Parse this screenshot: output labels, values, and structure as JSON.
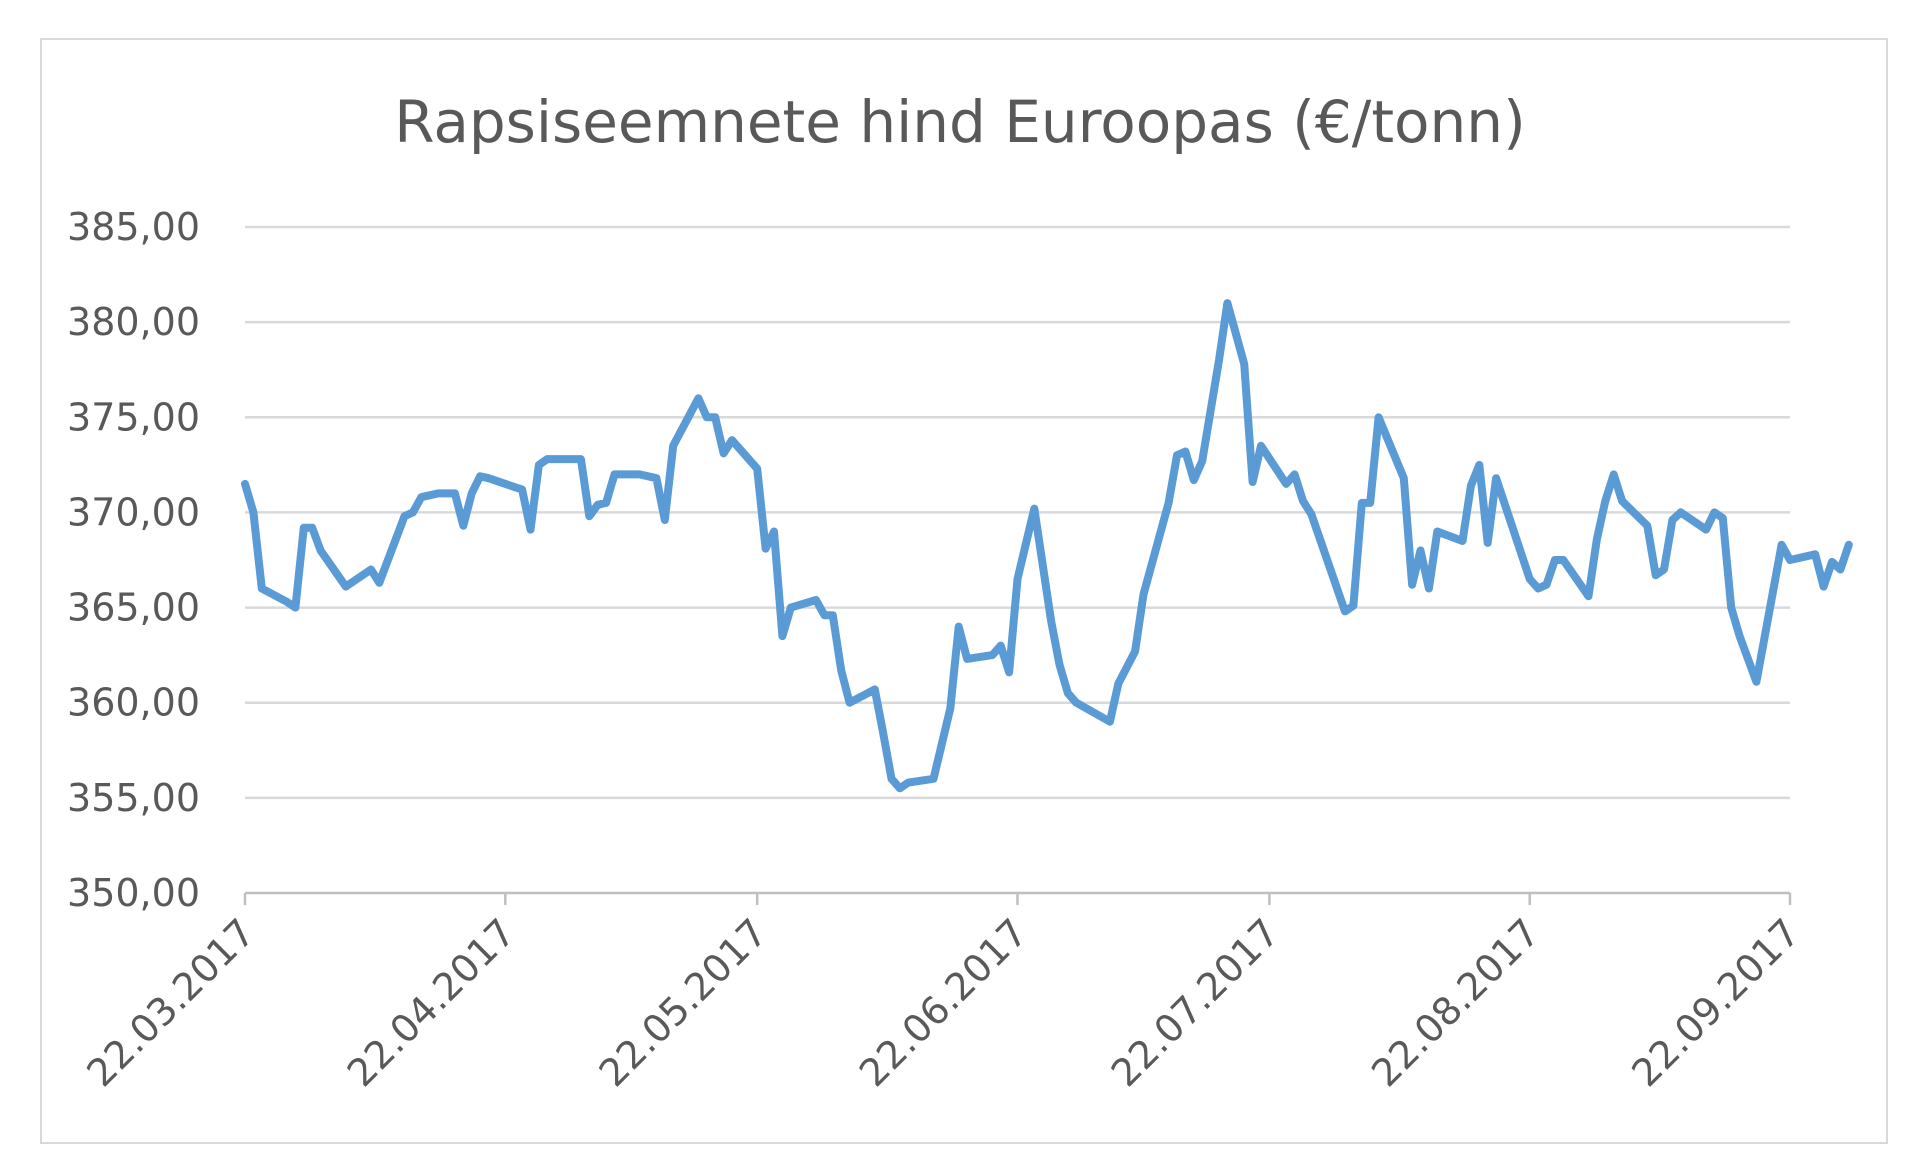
{
  "chart_data": {
    "type": "line",
    "title": "Rapsiseemnete hind Euroopas (€/tonn)",
    "xlabel": "",
    "ylabel": "",
    "ylim": [
      350,
      385
    ],
    "yticks": [
      350,
      355,
      360,
      365,
      370,
      375,
      380,
      385
    ],
    "ytick_labels": [
      "350,00",
      "355,00",
      "360,00",
      "365,00",
      "370,00",
      "375,00",
      "380,00",
      "385,00"
    ],
    "xlim": [
      "2017-03-22",
      "2017-09-22"
    ],
    "xticks": [
      "2017-03-22",
      "2017-04-22",
      "2017-05-22",
      "2017-06-22",
      "2017-07-22",
      "2017-08-22",
      "2017-09-22"
    ],
    "xtick_labels": [
      "22.03.2017",
      "22.04.2017",
      "22.05.2017",
      "22.06.2017",
      "22.07.2017",
      "22.08.2017",
      "22.09.2017"
    ],
    "grid": true,
    "line_color": "#5B9BD5",
    "gridline_color": "#d9d9d9",
    "series": [
      {
        "points": [
          [
            "2017-03-22",
            371.5
          ],
          [
            "2017-03-23",
            370.0
          ],
          [
            "2017-03-24",
            366.0
          ],
          [
            "2017-03-27",
            365.3
          ],
          [
            "2017-03-28",
            365.0
          ],
          [
            "2017-03-29",
            369.2
          ],
          [
            "2017-03-30",
            369.2
          ],
          [
            "2017-03-31",
            368.0
          ],
          [
            "2017-04-03",
            366.1
          ],
          [
            "2017-04-06",
            367.0
          ],
          [
            "2017-04-07",
            366.3
          ],
          [
            "2017-04-10",
            369.8
          ],
          [
            "2017-04-11",
            370.0
          ],
          [
            "2017-04-12",
            370.8
          ],
          [
            "2017-04-14",
            371.0
          ],
          [
            "2017-04-16",
            371.0
          ],
          [
            "2017-04-17",
            369.3
          ],
          [
            "2017-04-18",
            371.0
          ],
          [
            "2017-04-19",
            371.9
          ],
          [
            "2017-04-20",
            371.8
          ],
          [
            "2017-04-24",
            371.2
          ],
          [
            "2017-04-25",
            369.1
          ],
          [
            "2017-04-26",
            372.5
          ],
          [
            "2017-04-27",
            372.8
          ],
          [
            "2017-04-30",
            372.8
          ],
          [
            "2017-05-01",
            372.8
          ],
          [
            "2017-05-02",
            369.8
          ],
          [
            "2017-05-03",
            370.4
          ],
          [
            "2017-05-04",
            370.5
          ],
          [
            "2017-05-05",
            372.0
          ],
          [
            "2017-05-08",
            372.0
          ],
          [
            "2017-05-10",
            371.8
          ],
          [
            "2017-05-11",
            369.6
          ],
          [
            "2017-05-12",
            373.5
          ],
          [
            "2017-05-15",
            376.0
          ],
          [
            "2017-05-16",
            375.0
          ],
          [
            "2017-05-17",
            375.0
          ],
          [
            "2017-05-18",
            373.1
          ],
          [
            "2017-05-19",
            373.8
          ],
          [
            "2017-05-22",
            372.3
          ],
          [
            "2017-05-23",
            368.1
          ],
          [
            "2017-05-24",
            369.0
          ],
          [
            "2017-05-25",
            363.5
          ],
          [
            "2017-05-26",
            365.0
          ],
          [
            "2017-05-29",
            365.4
          ],
          [
            "2017-05-30",
            364.6
          ],
          [
            "2017-05-31",
            364.6
          ],
          [
            "2017-06-01",
            361.7
          ],
          [
            "2017-06-02",
            360.0
          ],
          [
            "2017-06-05",
            360.7
          ],
          [
            "2017-06-06",
            358.4
          ],
          [
            "2017-06-07",
            356.0
          ],
          [
            "2017-06-08",
            355.5
          ],
          [
            "2017-06-09",
            355.8
          ],
          [
            "2017-06-12",
            356.0
          ],
          [
            "2017-06-14",
            359.7
          ],
          [
            "2017-06-15",
            364.0
          ],
          [
            "2017-06-16",
            362.3
          ],
          [
            "2017-06-19",
            362.5
          ],
          [
            "2017-06-20",
            363.0
          ],
          [
            "2017-06-21",
            361.6
          ],
          [
            "2017-06-22",
            366.5
          ],
          [
            "2017-06-24",
            370.2
          ],
          [
            "2017-06-26",
            364.3
          ],
          [
            "2017-06-27",
            362.0
          ],
          [
            "2017-06-28",
            360.5
          ],
          [
            "2017-06-29",
            360.0
          ],
          [
            "2017-07-03",
            359.0
          ],
          [
            "2017-07-04",
            361.0
          ],
          [
            "2017-07-06",
            362.7
          ],
          [
            "2017-07-07",
            365.7
          ],
          [
            "2017-07-10",
            370.5
          ],
          [
            "2017-07-11",
            373.0
          ],
          [
            "2017-07-12",
            373.2
          ],
          [
            "2017-07-13",
            371.7
          ],
          [
            "2017-07-14",
            372.7
          ],
          [
            "2017-07-16",
            378.0
          ],
          [
            "2017-07-17",
            381.0
          ],
          [
            "2017-07-19",
            377.8
          ],
          [
            "2017-07-20",
            371.6
          ],
          [
            "2017-07-21",
            373.5
          ],
          [
            "2017-07-24",
            371.5
          ],
          [
            "2017-07-25",
            372.0
          ],
          [
            "2017-07-26",
            370.6
          ],
          [
            "2017-07-27",
            369.9
          ],
          [
            "2017-07-31",
            364.8
          ],
          [
            "2017-08-01",
            365.1
          ],
          [
            "2017-08-02",
            370.5
          ],
          [
            "2017-08-03",
            370.5
          ],
          [
            "2017-08-04",
            375.0
          ],
          [
            "2017-08-07",
            371.8
          ],
          [
            "2017-08-08",
            366.2
          ],
          [
            "2017-08-09",
            368.0
          ],
          [
            "2017-08-10",
            366.0
          ],
          [
            "2017-08-11",
            369.0
          ],
          [
            "2017-08-14",
            368.5
          ],
          [
            "2017-08-15",
            371.4
          ],
          [
            "2017-08-16",
            372.5
          ],
          [
            "2017-08-17",
            368.4
          ],
          [
            "2017-08-18",
            371.8
          ],
          [
            "2017-08-22",
            366.5
          ],
          [
            "2017-08-23",
            366.0
          ],
          [
            "2017-08-24",
            366.2
          ],
          [
            "2017-08-25",
            367.5
          ],
          [
            "2017-08-26",
            367.5
          ],
          [
            "2017-08-29",
            365.6
          ],
          [
            "2017-08-30",
            368.6
          ],
          [
            "2017-08-31",
            370.6
          ],
          [
            "2017-09-01",
            372.0
          ],
          [
            "2017-09-02",
            370.6
          ],
          [
            "2017-09-05",
            369.3
          ],
          [
            "2017-09-06",
            366.7
          ],
          [
            "2017-09-07",
            367.0
          ],
          [
            "2017-09-08",
            369.6
          ],
          [
            "2017-09-09",
            370.0
          ],
          [
            "2017-09-12",
            369.1
          ],
          [
            "2017-09-13",
            370.0
          ],
          [
            "2017-09-14",
            369.7
          ],
          [
            "2017-09-15",
            365.0
          ],
          [
            "2017-09-16",
            363.5
          ],
          [
            "2017-09-18",
            361.1
          ],
          [
            "2017-09-19",
            363.5
          ],
          [
            "2017-09-21",
            368.3
          ],
          [
            "2017-09-22",
            367.5
          ],
          [
            "2017-09-25",
            367.8
          ],
          [
            "2017-09-26",
            366.1
          ],
          [
            "2017-09-27",
            367.4
          ],
          [
            "2017-09-28",
            367.0
          ],
          [
            "2017-09-29",
            368.3
          ]
        ]
      }
    ]
  }
}
